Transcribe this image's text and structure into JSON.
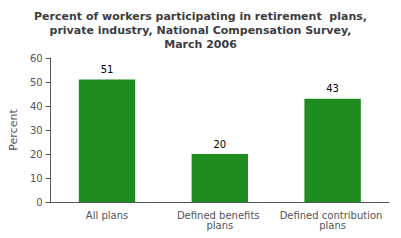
{
  "chart_data": {
    "type": "bar",
    "title": "Percent of workers participating in retirement  plans,\nprivate industry, National Compensation Survey,\nMarch 2006",
    "ylabel": "Percent",
    "categories": [
      "All plans",
      "Defined benefits plans",
      "Defined contribution plans"
    ],
    "values": [
      51,
      20,
      43
    ],
    "color": "#1f8c1f",
    "ylim": [
      0,
      60
    ],
    "yticks": [
      0,
      10,
      20,
      30,
      40,
      50,
      60
    ],
    "grid": false,
    "data_labels": true
  }
}
